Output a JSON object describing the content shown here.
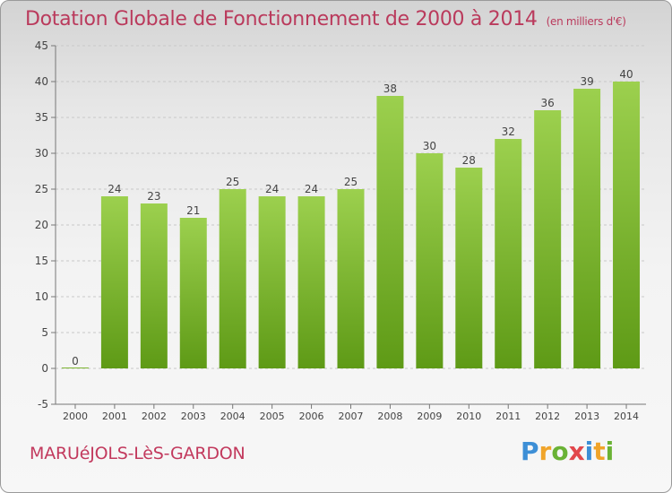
{
  "header": {
    "title": "Dotation Globale de Fonctionnement de 2000 à 2014",
    "unit": "(en milliers d'€)"
  },
  "footer": {
    "commune": "MARUéJOLS-LèS-GARDON",
    "logo": "Proxiti"
  },
  "colors": {
    "bar_top": "#9cd04e",
    "bar_bottom": "#5e9a16",
    "title": "#ba3a5c",
    "grid": "#c8c8c8"
  },
  "chart_data": {
    "type": "bar",
    "title": "Dotation Globale de Fonctionnement de 2000 à 2014",
    "subtitle": "(en milliers d'€)",
    "categories": [
      "2000",
      "2001",
      "2002",
      "2003",
      "2004",
      "2005",
      "2006",
      "2007",
      "2008",
      "2009",
      "2010",
      "2011",
      "2012",
      "2013",
      "2014"
    ],
    "values": [
      0,
      24,
      23,
      21,
      25,
      24,
      24,
      25,
      38,
      30,
      28,
      32,
      36,
      39,
      40
    ],
    "ylim": [
      -5,
      45
    ],
    "yticks": [
      -5,
      0,
      5,
      10,
      15,
      20,
      25,
      30,
      35,
      40,
      45
    ],
    "grid": true,
    "legend": "none"
  }
}
